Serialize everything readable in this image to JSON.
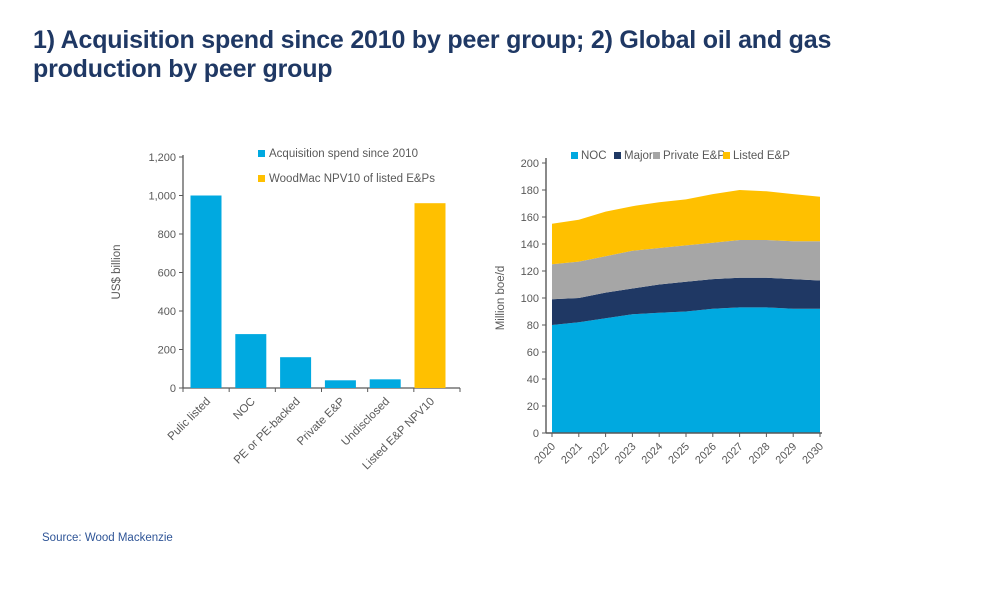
{
  "title": {
    "full": "1) Acquisition spend since 2010 by peer group; 2) Global oil and gas production by peer group",
    "line1": "1) Acquisition spend since 2010 by peer group; 2) Global oil and gas",
    "line2": "production by peer group"
  },
  "source_note": "Source: Wood Mackenzie",
  "colors": {
    "title_navy": "#1F3864",
    "light_blue": "#00A9E0",
    "yellow": "#FFC000",
    "navy": "#1F3864",
    "gray": "#A6A6A6",
    "chart_text": "#595959",
    "axis": "#595959",
    "source_blue": "#2F5597"
  },
  "chart_data": [
    {
      "type": "bar",
      "name": "acquisition-spend-by-peer-group",
      "ylabel": "US$ billion",
      "ylim": [
        0,
        1200
      ],
      "ytick_step": 200,
      "grid": false,
      "categories": [
        "Pulic listed",
        "NOC",
        "PE or PE-backed",
        "Private E&P",
        "Undisclosed",
        "Listed E&P NPV10"
      ],
      "values": [
        1000,
        280,
        160,
        40,
        45,
        960
      ],
      "bar_colors": [
        "#00A9E0",
        "#00A9E0",
        "#00A9E0",
        "#00A9E0",
        "#00A9E0",
        "#FFC000"
      ],
      "legend_position": "top-right",
      "legend": [
        {
          "label": "Acquisition spend since 2010",
          "color": "#00A9E0"
        },
        {
          "label": "WoodMac NPV10 of listed E&Ps",
          "color": "#FFC000"
        }
      ]
    },
    {
      "type": "area",
      "name": "global-oil-gas-production-by-peer-group",
      "ylabel": "Million boe/d",
      "ylim": [
        0,
        200
      ],
      "ytick_step": 20,
      "grid": false,
      "stacked": true,
      "x": [
        2020,
        2021,
        2022,
        2023,
        2024,
        2025,
        2026,
        2027,
        2028,
        2029,
        2030
      ],
      "series": [
        {
          "name": "NOC",
          "color": "#00A9E0",
          "values": [
            80,
            82,
            85,
            88,
            89,
            90,
            92,
            93,
            93,
            92,
            92
          ]
        },
        {
          "name": "Major",
          "color": "#1F3864",
          "values": [
            19,
            18,
            19,
            19,
            21,
            22,
            22,
            22,
            22,
            22,
            21
          ]
        },
        {
          "name": "Private E&P",
          "color": "#A6A6A6",
          "values": [
            26,
            27,
            27,
            28,
            27,
            27,
            27,
            28,
            28,
            28,
            29
          ]
        },
        {
          "name": "Listed E&P",
          "color": "#FFC000",
          "values": [
            30,
            31,
            33,
            33,
            34,
            34,
            36,
            37,
            36,
            35,
            33
          ]
        }
      ],
      "legend_position": "top"
    }
  ]
}
